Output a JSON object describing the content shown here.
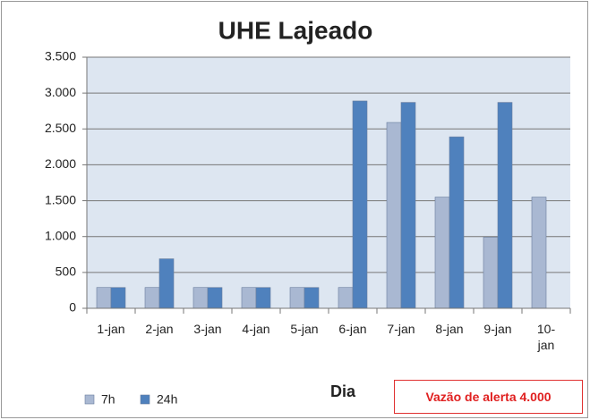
{
  "chart_data": {
    "type": "bar",
    "title": "UHE Lajeado",
    "x_label": "Dia",
    "annotation": "Vazão de alerta 4.000",
    "categories": [
      "1-jan",
      "2-jan",
      "3-jan",
      "4-jan",
      "5-jan",
      "6-jan",
      "7-jan",
      "8-jan",
      "9-jan",
      "10-jan"
    ],
    "series": [
      {
        "name": "7h",
        "color": "#a9b8d2",
        "values": [
          290,
          290,
          290,
          290,
          290,
          290,
          2590,
          1550,
          990,
          1550
        ]
      },
      {
        "name": "24h",
        "color": "#4f81bd",
        "values": [
          290,
          690,
          290,
          290,
          290,
          2890,
          2870,
          2390,
          2870,
          null
        ]
      }
    ],
    "ylim": [
      0,
      3500
    ],
    "yticks": [
      0,
      500,
      {
        "value": 1000,
        "label": "1.000"
      },
      {
        "value": 1500,
        "label": "1.500"
      },
      {
        "value": 2000,
        "label": "2.000"
      },
      {
        "value": 2500,
        "label": "2.500"
      },
      {
        "value": 3000,
        "label": "3.000"
      },
      {
        "value": 3500,
        "label": "3.500"
      }
    ],
    "grid": true,
    "legend": "bottom-left"
  }
}
